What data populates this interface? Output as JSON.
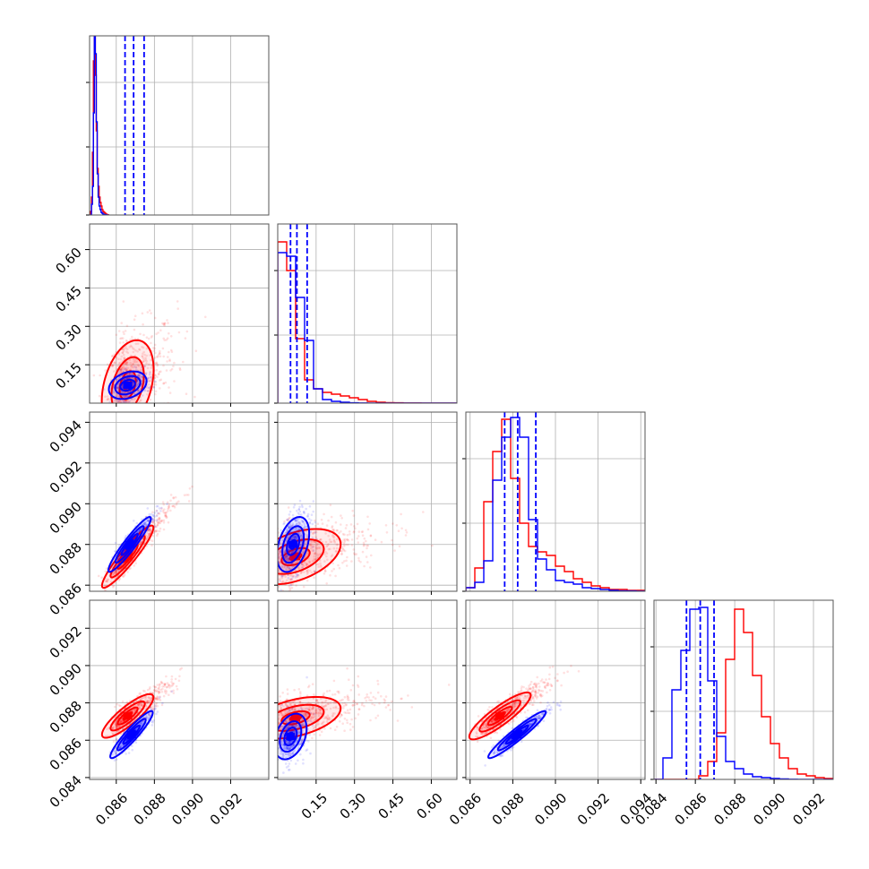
{
  "colors": {
    "red": "#ff0000",
    "blue": "#0000ff",
    "grid": "#b0b0b0",
    "frame": "#555555"
  },
  "chart_data": {
    "type": "corner",
    "grid": true,
    "n_params": 4,
    "series": [
      {
        "color": "#ff0000",
        "hist": [
          {
            "edges": [
              0.0846,
              0.0856
            ],
            "counts": [
              0,
              0.02,
              0.1,
              0.35,
              0.86,
              1.0,
              0.78,
              0.47,
              0.26,
              0.16,
              0.1,
              0.07,
              0.05,
              0.03,
              0.02,
              0.015,
              0.01,
              0.005,
              0.003,
              0.001
            ]
          },
          {
            "edges": [
              0.0,
              0.7
            ],
            "counts": [
              0.9,
              0.74,
              0.36,
              0.13,
              0.08,
              0.06,
              0.05,
              0.04,
              0.03,
              0.02,
              0.01,
              0.005,
              0.003,
              0.002,
              0.001,
              0.001,
              0.0005,
              0.0002,
              0.0001,
              0.0
            ]
          },
          {
            "edges": [
              0.0858,
              0.0942
            ],
            "counts": [
              0.02,
              0.13,
              0.5,
              0.78,
              0.96,
              0.63,
              0.38,
              0.25,
              0.22,
              0.2,
              0.14,
              0.11,
              0.07,
              0.05,
              0.03,
              0.02,
              0.01,
              0.01,
              0.005,
              0.005
            ]
          },
          {
            "edges": [
              0.0839,
              0.093
            ],
            "counts": [
              0,
              0,
              0,
              0,
              0,
              0.02,
              0.1,
              0.26,
              0.67,
              0.95,
              0.82,
              0.58,
              0.35,
              0.2,
              0.12,
              0.06,
              0.03,
              0.02,
              0.01,
              0.005
            ]
          }
        ]
      },
      {
        "color": "#0000ff",
        "hist": [
          {
            "edges": [
              0.0846,
              0.0856
            ],
            "counts": [
              0,
              0,
              0.06,
              0.16,
              0.57,
              1.0,
              0.9,
              0.52,
              0.23,
              0.1,
              0.05,
              0.03,
              0.015,
              0.01,
              0.005,
              0.003,
              0.002,
              0.001,
              0,
              0
            ]
          },
          {
            "edges": [
              0.0,
              0.7
            ],
            "counts": [
              0.84,
              0.82,
              0.59,
              0.35,
              0.08,
              0.02,
              0.01,
              0.005,
              0.002,
              0.001,
              0,
              0,
              0,
              0,
              0,
              0,
              0,
              0,
              0,
              0
            ]
          },
          {
            "edges": [
              0.0858,
              0.0942
            ],
            "counts": [
              0.02,
              0.05,
              0.17,
              0.62,
              0.86,
              0.97,
              0.86,
              0.4,
              0.18,
              0.12,
              0.06,
              0.05,
              0.04,
              0.02,
              0.015,
              0.01,
              0.005,
              0.003,
              0.002,
              0.001
            ]
          },
          {
            "edges": [
              0.0839,
              0.093
            ],
            "counts": [
              0,
              0.12,
              0.5,
              0.72,
              0.95,
              0.96,
              0.55,
              0.24,
              0.1,
              0.06,
              0.03,
              0.015,
              0.01,
              0.005,
              0.003,
              0.001,
              0,
              0,
              0,
              0
            ]
          }
        ]
      }
    ],
    "quantile_lines": {
      "color": "#0000ff",
      "params": [
        [
          0.08646,
          0.08691,
          0.08746
        ],
        [
          0.05,
          0.075,
          0.115
        ],
        [
          0.08762,
          0.08823,
          0.08908
        ],
        [
          0.08555,
          0.08625,
          0.08695
        ]
      ]
    },
    "panels": [
      {
        "row": 1,
        "col": 0,
        "xlim": [
          0.0846,
          0.094
        ],
        "ylim": [
          0.0,
          0.7
        ],
        "red": {
          "center": [
            0.0866,
            0.07
          ],
          "sx": 0.00085,
          "sy": 0.11,
          "rho": 0.35,
          "contours": [
            0.2,
            0.5,
            1.0,
            1.6
          ]
        },
        "blue": {
          "center": [
            0.0866,
            0.07
          ],
          "sx": 0.00055,
          "sy": 0.03,
          "rho": 0.3,
          "contours": [
            0.3,
            0.7,
            1.2,
            1.8
          ]
        }
      },
      {
        "row": 2,
        "col": 0,
        "xlim": [
          0.0846,
          0.094
        ],
        "ylim": [
          0.0857,
          0.0945
        ],
        "red": {
          "center": [
            0.0866,
            0.0874
          ],
          "sx": 0.00075,
          "sy": 0.00085,
          "rho": 0.93,
          "contours": [
            0.3,
            0.7,
            1.2,
            1.8
          ]
        },
        "blue": {
          "center": [
            0.0867,
            0.088
          ],
          "sx": 0.00062,
          "sy": 0.00075,
          "rho": 0.94,
          "contours": [
            0.3,
            0.7,
            1.2,
            1.8
          ]
        }
      },
      {
        "row": 2,
        "col": 1,
        "xlim": [
          0.0,
          0.7
        ],
        "ylim": [
          0.0857,
          0.0945
        ],
        "red": {
          "center": [
            0.07,
            0.0874
          ],
          "sx": 0.11,
          "sy": 0.00085,
          "rho": 0.45,
          "contours": [
            0.2,
            0.5,
            1.0,
            1.6
          ]
        },
        "blue": {
          "center": [
            0.06,
            0.088
          ],
          "sx": 0.035,
          "sy": 0.00075,
          "rho": 0.4,
          "contours": [
            0.3,
            0.7,
            1.2,
            1.8
          ]
        }
      },
      {
        "row": 3,
        "col": 0,
        "xlim": [
          0.0846,
          0.094
        ],
        "ylim": [
          0.0839,
          0.0935
        ],
        "red": {
          "center": [
            0.0866,
            0.0873
          ],
          "sx": 0.00075,
          "sy": 0.00065,
          "rho": 0.85,
          "contours": [
            0.3,
            0.7,
            1.2,
            1.8
          ]
        },
        "blue": {
          "center": [
            0.0868,
            0.0863
          ],
          "sx": 0.00062,
          "sy": 0.0007,
          "rho": 0.93,
          "contours": [
            0.3,
            0.7,
            1.2,
            1.8
          ]
        }
      },
      {
        "row": 3,
        "col": 1,
        "xlim": [
          0.0,
          0.7
        ],
        "ylim": [
          0.0839,
          0.0935
        ],
        "red": {
          "center": [
            0.07,
            0.0872
          ],
          "sx": 0.11,
          "sy": 0.0007,
          "rho": 0.45,
          "contours": [
            0.2,
            0.5,
            1.0,
            1.6
          ]
        },
        "blue": {
          "center": [
            0.05,
            0.0862
          ],
          "sx": 0.035,
          "sy": 0.00068,
          "rho": 0.35,
          "contours": [
            0.3,
            0.7,
            1.2,
            1.8
          ]
        }
      },
      {
        "row": 3,
        "col": 2,
        "xlim": [
          0.0858,
          0.0942
        ],
        "ylim": [
          0.0839,
          0.0935
        ],
        "red": {
          "center": [
            0.0874,
            0.0873
          ],
          "sx": 0.0008,
          "sy": 0.0007,
          "rho": 0.88,
          "contours": [
            0.3,
            0.7,
            1.2,
            1.8
          ]
        },
        "blue": {
          "center": [
            0.0882,
            0.0863
          ],
          "sx": 0.00075,
          "sy": 0.0007,
          "rho": 0.95,
          "contours": [
            0.3,
            0.7,
            1.2,
            1.8
          ]
        }
      }
    ],
    "axes": {
      "bottom_row_xticks": [
        {
          "col": 0,
          "xlim": [
            0.0846,
            0.094
          ],
          "ticks": [
            "0.086",
            "0.088",
            "0.090",
            "0.092"
          ],
          "values": [
            0.086,
            0.088,
            0.09,
            0.092
          ]
        },
        {
          "col": 1,
          "xlim": [
            0.0,
            0.7
          ],
          "ticks": [
            "0.15",
            "0.30",
            "0.45",
            "0.60"
          ],
          "values": [
            0.15,
            0.3,
            0.45,
            0.6
          ]
        },
        {
          "col": 2,
          "xlim": [
            0.0858,
            0.0942
          ],
          "ticks": [
            "0.086",
            "0.088",
            "0.090",
            "0.092",
            "0.094"
          ],
          "values": [
            0.086,
            0.088,
            0.09,
            0.092,
            0.094
          ]
        },
        {
          "col": 3,
          "xlim": [
            0.0839,
            0.093
          ],
          "ticks": [
            "0.084",
            "0.086",
            "0.088",
            "0.090",
            "0.092"
          ],
          "values": [
            0.084,
            0.086,
            0.088,
            0.09,
            0.092
          ]
        }
      ],
      "left_col_yticks": [
        {
          "row": 1,
          "ylim": [
            0.0,
            0.7
          ],
          "ticks": [
            "0.15",
            "0.30",
            "0.45",
            "0.60"
          ],
          "values": [
            0.15,
            0.3,
            0.45,
            0.6
          ]
        },
        {
          "row": 2,
          "ylim": [
            0.0857,
            0.0945
          ],
          "ticks": [
            "0.086",
            "0.088",
            "0.090",
            "0.092",
            "0.094"
          ],
          "values": [
            0.086,
            0.088,
            0.09,
            0.092,
            0.094
          ]
        },
        {
          "row": 3,
          "ylim": [
            0.0839,
            0.0935
          ],
          "ticks": [
            "0.084",
            "0.086",
            "0.088",
            "0.090",
            "0.092"
          ],
          "values": [
            0.084,
            0.086,
            0.088,
            0.09,
            0.092
          ]
        }
      ]
    }
  }
}
